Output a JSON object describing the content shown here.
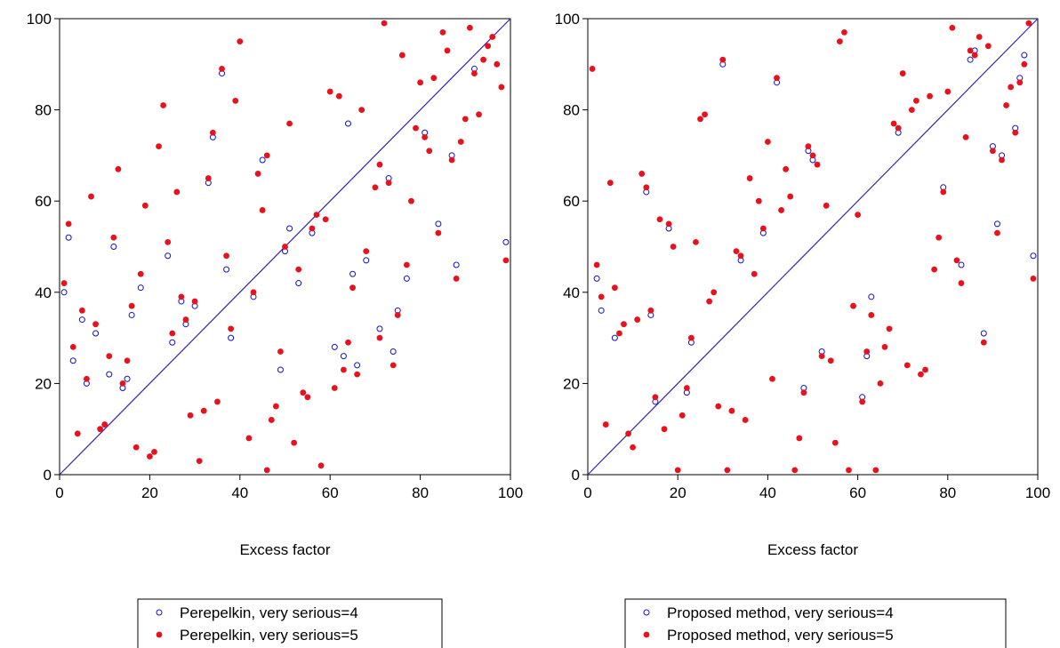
{
  "chart_data": [
    {
      "type": "scatter",
      "xlabel": "Excess factor",
      "ylabel": "",
      "xlim": [
        0,
        100
      ],
      "ylim": [
        0,
        100
      ],
      "x_ticks": [
        "0",
        "20",
        "40",
        "60",
        "80",
        "100"
      ],
      "y_ticks": [
        "0",
        "20",
        "40",
        "60",
        "80",
        "100"
      ],
      "reference_line": {
        "from": [
          0,
          0
        ],
        "to": [
          100,
          100
        ],
        "color": "#3a1fb5"
      },
      "legend_position": "bottom",
      "series": [
        {
          "name": "Perepelkin, very serious=4",
          "marker": "open-circle",
          "color": "#1010d0",
          "points": [
            [
              1,
              40
            ],
            [
              2,
              52
            ],
            [
              3,
              25
            ],
            [
              5,
              34
            ],
            [
              6,
              20
            ],
            [
              8,
              31
            ],
            [
              11,
              22
            ],
            [
              12,
              50
            ],
            [
              14,
              19
            ],
            [
              15,
              21
            ],
            [
              16,
              35
            ],
            [
              18,
              41
            ],
            [
              24,
              48
            ],
            [
              25,
              29
            ],
            [
              27,
              38
            ],
            [
              28,
              33
            ],
            [
              30,
              37
            ],
            [
              33,
              64
            ],
            [
              34,
              74
            ],
            [
              36,
              88
            ],
            [
              37,
              45
            ],
            [
              38,
              30
            ],
            [
              43,
              39
            ],
            [
              45,
              69
            ],
            [
              49,
              23
            ],
            [
              50,
              49
            ],
            [
              51,
              54
            ],
            [
              53,
              42
            ],
            [
              56,
              53
            ],
            [
              61,
              28
            ],
            [
              63,
              26
            ],
            [
              64,
              77
            ],
            [
              65,
              44
            ],
            [
              66,
              24
            ],
            [
              68,
              47
            ],
            [
              71,
              32
            ],
            [
              73,
              65
            ],
            [
              74,
              27
            ],
            [
              75,
              36
            ],
            [
              77,
              43
            ],
            [
              81,
              75
            ],
            [
              84,
              55
            ],
            [
              87,
              70
            ],
            [
              88,
              46
            ],
            [
              92,
              89
            ],
            [
              99,
              51
            ]
          ]
        },
        {
          "name": "Perepelkin, very serious=5",
          "marker": "filled-circle",
          "color": "#e8121e",
          "points": [
            [
              1,
              42
            ],
            [
              2,
              55
            ],
            [
              3,
              28
            ],
            [
              4,
              9
            ],
            [
              5,
              36
            ],
            [
              6,
              21
            ],
            [
              7,
              61
            ],
            [
              8,
              33
            ],
            [
              9,
              10
            ],
            [
              10,
              11
            ],
            [
              11,
              26
            ],
            [
              12,
              52
            ],
            [
              13,
              67
            ],
            [
              14,
              20
            ],
            [
              15,
              25
            ],
            [
              16,
              37
            ],
            [
              17,
              6
            ],
            [
              18,
              44
            ],
            [
              19,
              59
            ],
            [
              20,
              4
            ],
            [
              21,
              5
            ],
            [
              22,
              72
            ],
            [
              23,
              81
            ],
            [
              24,
              51
            ],
            [
              25,
              31
            ],
            [
              26,
              62
            ],
            [
              27,
              39
            ],
            [
              28,
              34
            ],
            [
              29,
              13
            ],
            [
              30,
              38
            ],
            [
              31,
              3
            ],
            [
              32,
              14
            ],
            [
              33,
              65
            ],
            [
              34,
              75
            ],
            [
              35,
              16
            ],
            [
              36,
              89
            ],
            [
              37,
              48
            ],
            [
              38,
              32
            ],
            [
              39,
              82
            ],
            [
              40,
              95
            ],
            [
              42,
              8
            ],
            [
              43,
              40
            ],
            [
              44,
              66
            ],
            [
              45,
              58
            ],
            [
              46,
              70
            ],
            [
              46,
              1
            ],
            [
              47,
              12
            ],
            [
              48,
              15
            ],
            [
              49,
              27
            ],
            [
              50,
              50
            ],
            [
              51,
              77
            ],
            [
              52,
              7
            ],
            [
              53,
              45
            ],
            [
              54,
              18
            ],
            [
              55,
              17
            ],
            [
              56,
              54
            ],
            [
              57,
              57
            ],
            [
              58,
              2
            ],
            [
              59,
              56
            ],
            [
              60,
              84
            ],
            [
              61,
              19
            ],
            [
              62,
              83
            ],
            [
              63,
              23
            ],
            [
              64,
              29
            ],
            [
              65,
              41
            ],
            [
              66,
              22
            ],
            [
              67,
              80
            ],
            [
              68,
              49
            ],
            [
              70,
              63
            ],
            [
              71,
              68
            ],
            [
              71,
              30
            ],
            [
              72,
              99
            ],
            [
              73,
              64
            ],
            [
              74,
              24
            ],
            [
              75,
              35
            ],
            [
              76,
              92
            ],
            [
              77,
              46
            ],
            [
              78,
              60
            ],
            [
              79,
              76
            ],
            [
              80,
              86
            ],
            [
              81,
              74
            ],
            [
              82,
              71
            ],
            [
              83,
              87
            ],
            [
              84,
              53
            ],
            [
              85,
              97
            ],
            [
              86,
              93
            ],
            [
              87,
              69
            ],
            [
              88,
              43
            ],
            [
              89,
              73
            ],
            [
              90,
              78
            ],
            [
              91,
              98
            ],
            [
              92,
              88
            ],
            [
              93,
              79
            ],
            [
              94,
              91
            ],
            [
              95,
              94
            ],
            [
              96,
              96
            ],
            [
              97,
              90
            ],
            [
              98,
              85
            ],
            [
              99,
              47
            ]
          ]
        }
      ]
    },
    {
      "type": "scatter",
      "xlabel": "Excess factor",
      "ylabel": "",
      "xlim": [
        0,
        100
      ],
      "ylim": [
        0,
        100
      ],
      "x_ticks": [
        "0",
        "20",
        "40",
        "60",
        "80",
        "100"
      ],
      "y_ticks": [
        "0",
        "20",
        "40",
        "60",
        "80",
        "100"
      ],
      "reference_line": {
        "from": [
          0,
          0
        ],
        "to": [
          100,
          100
        ],
        "color": "#3a1fb5"
      },
      "legend_position": "bottom",
      "series": [
        {
          "name": "Proposed method, very serious=4",
          "marker": "open-circle",
          "color": "#1010d0",
          "points": [
            [
              2,
              43
            ],
            [
              3,
              36
            ],
            [
              6,
              30
            ],
            [
              13,
              62
            ],
            [
              14,
              35
            ],
            [
              15,
              16
            ],
            [
              18,
              54
            ],
            [
              22,
              18
            ],
            [
              23,
              29
            ],
            [
              30,
              90
            ],
            [
              34,
              47
            ],
            [
              39,
              53
            ],
            [
              42,
              86
            ],
            [
              48,
              19
            ],
            [
              49,
              71
            ],
            [
              50,
              69
            ],
            [
              52,
              27
            ],
            [
              61,
              17
            ],
            [
              62,
              26
            ],
            [
              63,
              39
            ],
            [
              69,
              75
            ],
            [
              79,
              63
            ],
            [
              83,
              46
            ],
            [
              85,
              91
            ],
            [
              86,
              93
            ],
            [
              88,
              31
            ],
            [
              90,
              72
            ],
            [
              91,
              55
            ],
            [
              92,
              70
            ],
            [
              95,
              76
            ],
            [
              96,
              87
            ],
            [
              97,
              92
            ],
            [
              99,
              48
            ]
          ]
        },
        {
          "name": "Proposed method, very serious=5",
          "marker": "filled-circle",
          "color": "#e8121e",
          "points": [
            [
              1,
              89
            ],
            [
              2,
              46
            ],
            [
              3,
              39
            ],
            [
              4,
              11
            ],
            [
              5,
              64
            ],
            [
              6,
              41
            ],
            [
              7,
              31
            ],
            [
              8,
              33
            ],
            [
              9,
              9
            ],
            [
              10,
              6
            ],
            [
              11,
              34
            ],
            [
              12,
              66
            ],
            [
              13,
              63
            ],
            [
              14,
              36
            ],
            [
              15,
              17
            ],
            [
              16,
              56
            ],
            [
              17,
              10
            ],
            [
              18,
              55
            ],
            [
              19,
              50
            ],
            [
              20,
              1
            ],
            [
              21,
              13
            ],
            [
              22,
              19
            ],
            [
              23,
              30
            ],
            [
              24,
              51
            ],
            [
              25,
              78
            ],
            [
              26,
              79
            ],
            [
              27,
              38
            ],
            [
              28,
              40
            ],
            [
              29,
              15
            ],
            [
              30,
              91
            ],
            [
              31,
              1
            ],
            [
              32,
              14
            ],
            [
              33,
              49
            ],
            [
              34,
              48
            ],
            [
              35,
              12
            ],
            [
              36,
              65
            ],
            [
              37,
              44
            ],
            [
              38,
              60
            ],
            [
              39,
              54
            ],
            [
              40,
              73
            ],
            [
              41,
              21
            ],
            [
              42,
              87
            ],
            [
              43,
              58
            ],
            [
              44,
              67
            ],
            [
              45,
              61
            ],
            [
              46,
              1
            ],
            [
              47,
              8
            ],
            [
              48,
              18
            ],
            [
              49,
              72
            ],
            [
              50,
              70
            ],
            [
              51,
              68
            ],
            [
              52,
              26
            ],
            [
              53,
              59
            ],
            [
              54,
              25
            ],
            [
              55,
              7
            ],
            [
              56,
              95
            ],
            [
              57,
              97
            ],
            [
              58,
              1
            ],
            [
              59,
              37
            ],
            [
              60,
              57
            ],
            [
              61,
              16
            ],
            [
              62,
              27
            ],
            [
              63,
              35
            ],
            [
              64,
              1
            ],
            [
              65,
              20
            ],
            [
              66,
              28
            ],
            [
              67,
              32
            ],
            [
              68,
              77
            ],
            [
              69,
              76
            ],
            [
              70,
              88
            ],
            [
              71,
              24
            ],
            [
              72,
              80
            ],
            [
              73,
              82
            ],
            [
              74,
              22
            ],
            [
              75,
              23
            ],
            [
              76,
              83
            ],
            [
              77,
              45
            ],
            [
              78,
              52
            ],
            [
              79,
              62
            ],
            [
              80,
              84
            ],
            [
              81,
              98
            ],
            [
              82,
              47
            ],
            [
              83,
              42
            ],
            [
              84,
              74
            ],
            [
              85,
              93
            ],
            [
              86,
              92
            ],
            [
              87,
              96
            ],
            [
              88,
              29
            ],
            [
              89,
              94
            ],
            [
              90,
              71
            ],
            [
              91,
              53
            ],
            [
              92,
              69
            ],
            [
              93,
              81
            ],
            [
              94,
              85
            ],
            [
              95,
              75
            ],
            [
              96,
              86
            ],
            [
              97,
              90
            ],
            [
              98,
              99
            ],
            [
              99,
              43
            ]
          ]
        }
      ]
    }
  ]
}
